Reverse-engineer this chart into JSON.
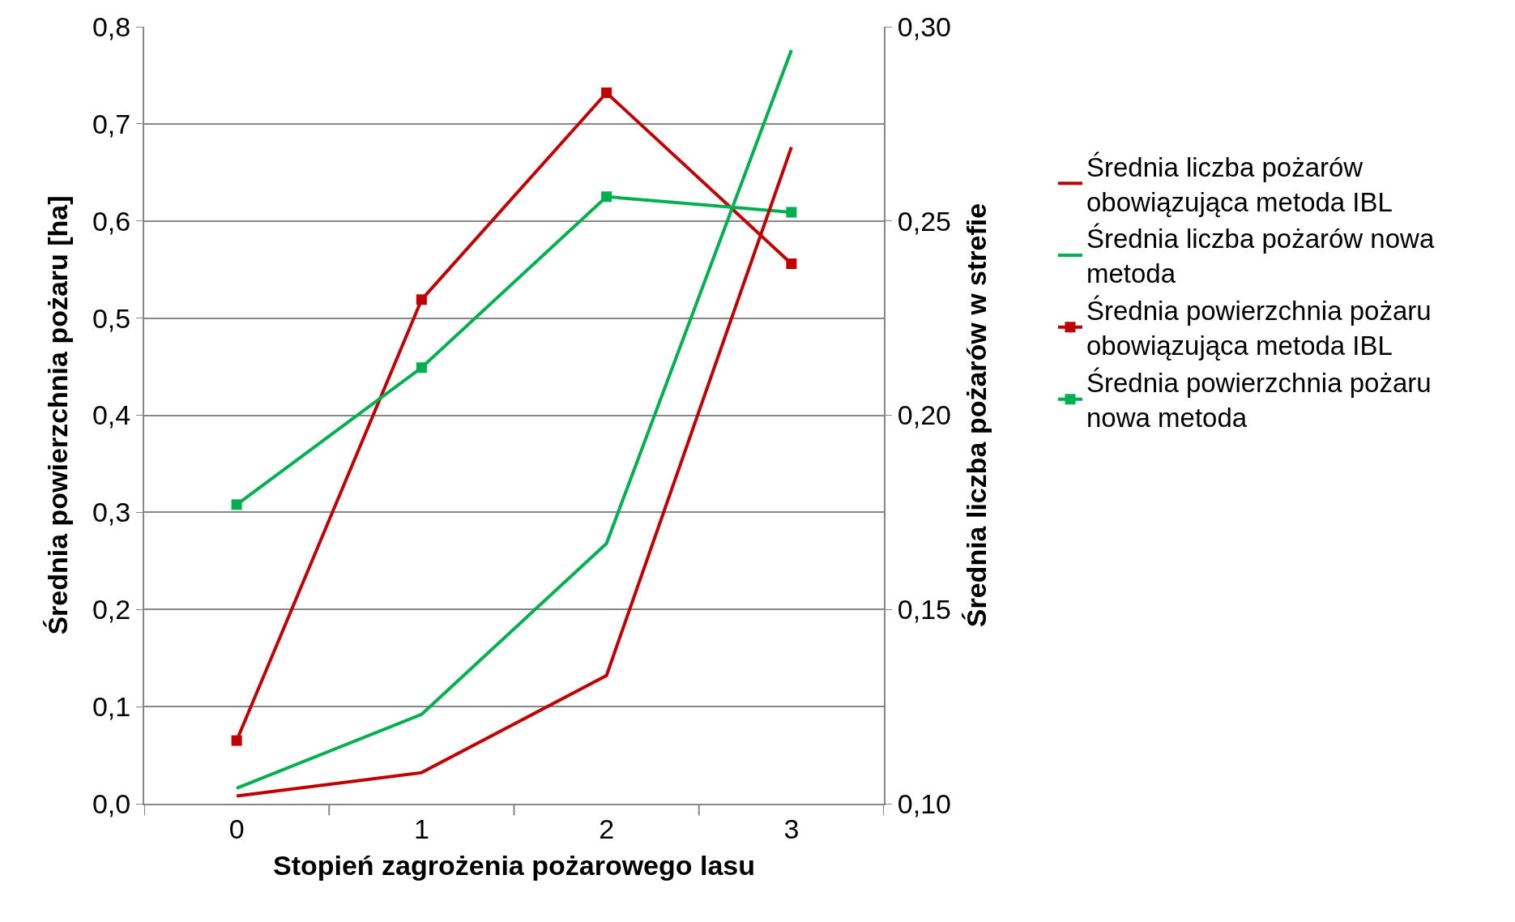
{
  "chart_data": {
    "type": "line",
    "xlabel": "Stopień zagrożenia pożarowego lasu",
    "ylabel": "Średnia powierzchnia pożaru [ha]",
    "y2label": "Średnia liczba pożarów w strefie",
    "categories": [
      "0",
      "1",
      "2",
      "3"
    ],
    "series": [
      {
        "name": "Średnia liczba pożarów obowiązująca metoda IBL",
        "color": "#c00000",
        "axis": "y2",
        "marker": "none",
        "values": [
          0.102,
          0.108,
          0.133,
          0.269
        ]
      },
      {
        "name": "Średnia liczba pożarów nowa metoda",
        "color": "#00b050",
        "axis": "y2",
        "marker": "none",
        "values": [
          0.104,
          0.123,
          0.167,
          0.294
        ]
      },
      {
        "name": "Średnia powierzchnia pożaru obowiązująca metoda IBL",
        "color": "#c00000",
        "axis": "y",
        "marker": "square",
        "values": [
          0.065,
          0.519,
          0.732,
          0.556
        ]
      },
      {
        "name": "Średnia powierzchnia pożaru nowa metoda",
        "color": "#00b050",
        "axis": "y",
        "marker": "square",
        "values": [
          0.308,
          0.449,
          0.625,
          0.609
        ]
      }
    ],
    "ylim": [
      0,
      0.8
    ],
    "yticks": [
      {
        "value": 0,
        "label": "0,0"
      },
      {
        "value": 0.1,
        "label": "0,1"
      },
      {
        "value": 0.2,
        "label": "0,2"
      },
      {
        "value": 0.3,
        "label": "0,3"
      },
      {
        "value": 0.4,
        "label": "0,4"
      },
      {
        "value": 0.5,
        "label": "0,5"
      },
      {
        "value": 0.6,
        "label": "0,6"
      },
      {
        "value": 0.7,
        "label": "0,7"
      },
      {
        "value": 0.8,
        "label": "0,8"
      }
    ],
    "y2lim": [
      0.1,
      0.3
    ],
    "y2ticks": [
      {
        "value": 0.1,
        "label": "0,10"
      },
      {
        "value": 0.15,
        "label": "0,15"
      },
      {
        "value": 0.2,
        "label": "0,20"
      },
      {
        "value": 0.25,
        "label": "0,25"
      },
      {
        "value": 0.3,
        "label": "0,30"
      }
    ],
    "grid": "y",
    "legend": "right",
    "line_style": "solid"
  }
}
